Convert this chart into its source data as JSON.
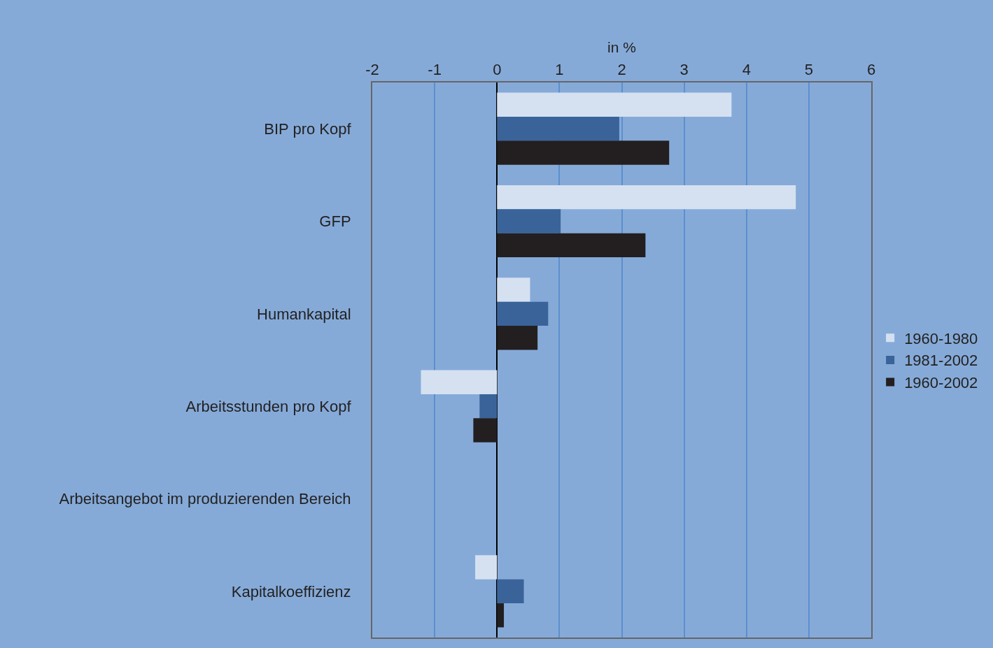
{
  "chart_data": {
    "type": "bar",
    "orientation": "horizontal",
    "xlabel": "in %",
    "categories": [
      "BIP pro Kopf",
      "GFP",
      "Humankapital",
      "Arbeitsstunden pro Kopf",
      "Arbeitsangebot im produzierenden Bereich",
      "Kapitalkoeffizienz"
    ],
    "series": [
      {
        "name": "1960-1980",
        "color": "#d5e1f1",
        "values": [
          3.76,
          4.79,
          0.53,
          -1.22,
          0,
          -0.35
        ]
      },
      {
        "name": "1981-2002",
        "color": "#3a6499",
        "values": [
          1.96,
          1.02,
          0.82,
          -0.28,
          0,
          0.43
        ]
      },
      {
        "name": "1960-2002",
        "color": "#231f20",
        "values": [
          2.76,
          2.38,
          0.65,
          -0.38,
          0,
          0.11
        ]
      }
    ],
    "xlim": [
      -2,
      6
    ],
    "xticks": [
      -2,
      -1,
      0,
      1,
      2,
      3,
      4,
      5,
      6
    ],
    "grid": "x",
    "legend": "right"
  }
}
